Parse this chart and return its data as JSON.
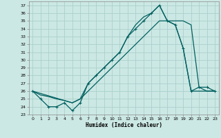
{
  "xlabel": "Humidex (Indice chaleur)",
  "ylabel": "",
  "bg_color": "#cce8e4",
  "grid_color": "#aad0cc",
  "line_color": "#006060",
  "xlim": [
    -0.5,
    23.5
  ],
  "ylim": [
    23,
    37.5
  ],
  "xticks": [
    0,
    1,
    2,
    3,
    4,
    5,
    6,
    7,
    8,
    9,
    10,
    11,
    12,
    13,
    14,
    15,
    16,
    17,
    18,
    19,
    20,
    21,
    22,
    23
  ],
  "yticks": [
    23,
    24,
    25,
    26,
    27,
    28,
    29,
    30,
    31,
    32,
    33,
    34,
    35,
    36,
    37
  ],
  "line1_x": [
    0,
    1,
    2,
    3,
    4,
    5,
    6,
    7,
    8,
    9,
    10,
    11,
    12,
    13,
    14,
    15,
    16,
    17,
    18,
    19,
    20,
    21,
    22,
    23
  ],
  "line1_y": [
    26,
    25,
    24,
    24,
    24.5,
    23.5,
    24.5,
    27,
    28,
    29,
    30,
    31,
    33,
    34,
    35,
    36,
    37,
    35,
    34.5,
    31.5,
    26,
    26.5,
    26.5,
    26
  ],
  "line2_x": [
    0,
    1,
    2,
    3,
    4,
    5,
    6,
    7,
    8,
    9,
    10,
    11,
    12,
    13,
    14,
    15,
    16,
    17,
    18,
    19,
    20,
    21,
    22,
    23
  ],
  "line2_y": [
    26,
    25.5,
    25.3,
    25,
    24.8,
    24.5,
    25,
    26,
    27,
    28,
    29,
    30,
    31,
    32,
    33,
    34,
    35,
    35,
    35,
    35,
    34.5,
    26.5,
    26,
    26
  ],
  "line3_x": [
    0,
    5,
    6,
    7,
    8,
    9,
    10,
    11,
    12,
    13,
    14,
    15,
    16,
    17,
    18,
    19,
    20,
    21,
    22,
    23
  ],
  "line3_y": [
    26,
    24.5,
    25,
    27,
    28,
    29,
    30,
    31,
    33,
    34.5,
    35.5,
    36,
    37,
    35,
    34.5,
    31.5,
    26,
    26,
    26,
    26
  ],
  "marker_x": [
    0,
    1,
    2,
    3,
    4,
    5,
    6,
    7,
    8,
    9,
    10,
    11,
    12,
    13,
    14,
    15,
    16,
    17,
    18,
    19,
    20,
    21,
    22,
    23
  ],
  "marker_y": [
    26,
    25,
    24,
    24,
    24.5,
    23.5,
    24.5,
    27,
    28,
    29,
    30,
    31,
    33,
    34,
    35,
    36,
    37,
    35,
    34.5,
    31.5,
    26,
    26.5,
    26.5,
    26
  ]
}
